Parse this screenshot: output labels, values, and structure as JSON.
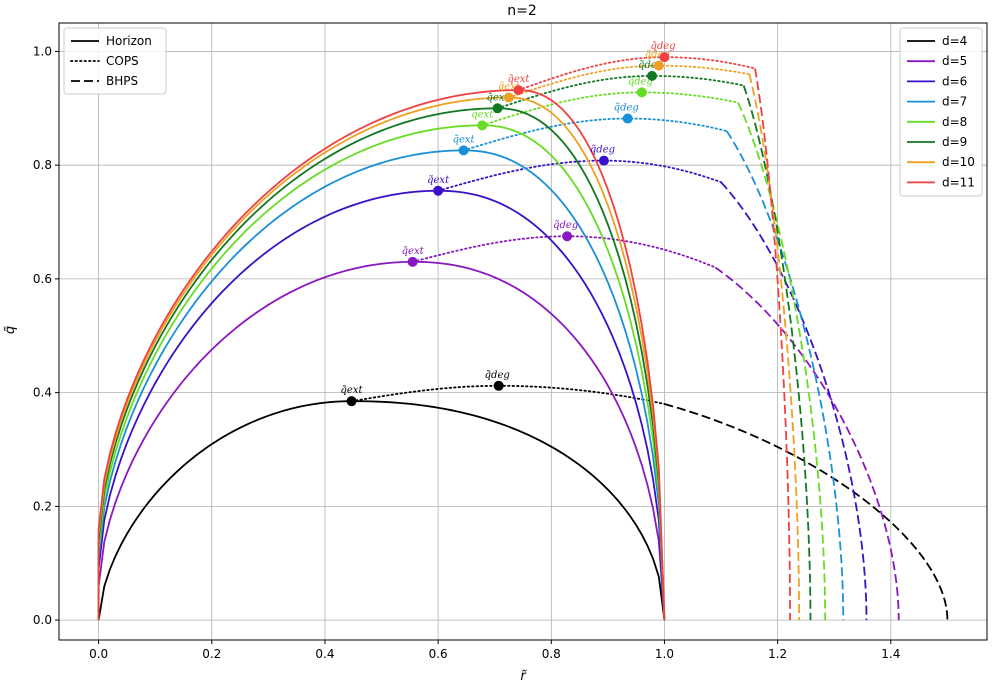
{
  "chart_data": {
    "type": "line",
    "title": "n=2",
    "xlabel": "r̃",
    "ylabel": "q̃",
    "xlim": [
      -0.07,
      1.57
    ],
    "ylim": [
      -0.035,
      1.05
    ],
    "xticks": [
      "0.0",
      "0.2",
      "0.4",
      "0.6",
      "0.8",
      "1.0",
      "1.2",
      "1.4"
    ],
    "xtick_values": [
      0,
      0.2,
      0.4,
      0.6,
      0.8,
      1.0,
      1.2,
      1.4
    ],
    "yticks": [
      "0.0",
      "0.2",
      "0.4",
      "0.6",
      "0.8",
      "1.0"
    ],
    "ytick_values": [
      0,
      0.2,
      0.4,
      0.6,
      0.8,
      1.0
    ],
    "grid": true,
    "style_legend": {
      "placement": "top-left",
      "entries": [
        {
          "label": "Horizon",
          "style": "solid"
        },
        {
          "label": "COPS",
          "style": "dotted"
        },
        {
          "label": "BHPS",
          "style": "dashed"
        }
      ]
    },
    "color_legend": {
      "placement": "top-right"
    },
    "marker_labels": {
      "ext": "q̃ext",
      "deg": "q̃deg"
    },
    "series": [
      {
        "name": "d=4",
        "color": "#000000",
        "ext": [
          0.447,
          0.385
        ],
        "deg": [
          0.707,
          0.412
        ],
        "horizon_start": 0.0,
        "cops_end": [
          1.0,
          0.38
        ],
        "bhps_end": 1.5
      },
      {
        "name": "d=5",
        "color": "#8a18c0",
        "ext": [
          0.555,
          0.63
        ],
        "deg": [
          0.828,
          0.675
        ],
        "horizon_start": 0.06,
        "cops_end": [
          1.09,
          0.62
        ],
        "bhps_end": 1.414
      },
      {
        "name": "d=6",
        "color": "#3a10c8",
        "ext": [
          0.6,
          0.755
        ],
        "deg": [
          0.893,
          0.808
        ],
        "horizon_start": 0.09,
        "cops_end": [
          1.1,
          0.77
        ],
        "bhps_end": 1.357
      },
      {
        "name": "d=7",
        "color": "#1a90d8",
        "ext": [
          0.645,
          0.826
        ],
        "deg": [
          0.935,
          0.882
        ],
        "horizon_start": 0.11,
        "cops_end": [
          1.11,
          0.86
        ],
        "bhps_end": 1.316
      },
      {
        "name": "d=8",
        "color": "#66dd22",
        "ext": [
          0.678,
          0.87
        ],
        "deg": [
          0.96,
          0.928
        ],
        "horizon_start": 0.125,
        "cops_end": [
          1.13,
          0.91
        ],
        "bhps_end": 1.284
      },
      {
        "name": "d=9",
        "color": "#117722",
        "ext": [
          0.705,
          0.9
        ],
        "deg": [
          0.978,
          0.957
        ],
        "horizon_start": 0.14,
        "cops_end": [
          1.14,
          0.94
        ],
        "bhps_end": 1.258
      },
      {
        "name": "d=10",
        "color": "#f0a020",
        "ext": [
          0.725,
          0.919
        ],
        "deg": [
          0.99,
          0.975
        ],
        "horizon_start": 0.15,
        "cops_end": [
          1.15,
          0.96
        ],
        "bhps_end": 1.238
      },
      {
        "name": "d=11",
        "color": "#f04040",
        "ext": [
          0.742,
          0.932
        ],
        "deg": [
          1.0,
          0.99
        ],
        "horizon_start": 0.16,
        "cops_end": [
          1.16,
          0.97
        ],
        "bhps_end": 1.222
      }
    ]
  }
}
